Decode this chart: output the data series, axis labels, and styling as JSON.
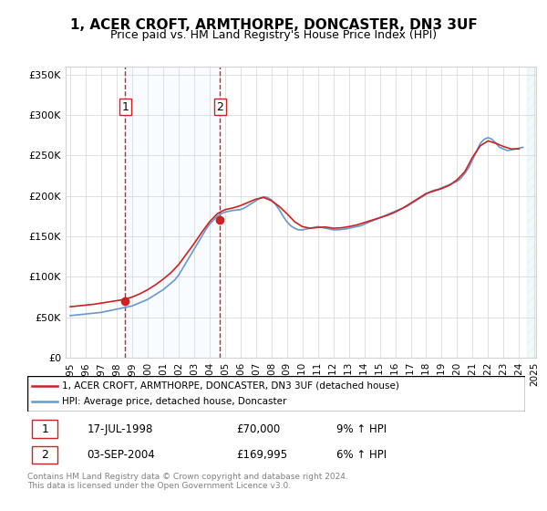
{
  "title": "1, ACER CROFT, ARMTHORPE, DONCASTER, DN3 3UF",
  "subtitle": "Price paid vs. HM Land Registry's House Price Index (HPI)",
  "legend_line1": "1, ACER CROFT, ARMTHORPE, DONCASTER, DN3 3UF (detached house)",
  "legend_line2": "HPI: Average price, detached house, Doncaster",
  "transaction1_label": "1",
  "transaction1_date": "17-JUL-1998",
  "transaction1_price": "£70,000",
  "transaction1_hpi": "9% ↑ HPI",
  "transaction2_label": "2",
  "transaction2_date": "03-SEP-2004",
  "transaction2_price": "£169,995",
  "transaction2_hpi": "6% ↑ HPI",
  "footer": "Contains HM Land Registry data © Crown copyright and database right 2024.\nThis data is licensed under the Open Government Licence v3.0.",
  "hpi_color": "#6699cc",
  "price_color": "#cc2222",
  "vline_color": "#cc2222",
  "marker_color": "#cc2222",
  "background_shading_color": "#ddeeff",
  "ylim": [
    0,
    360000
  ],
  "yticks": [
    0,
    50000,
    100000,
    150000,
    200000,
    250000,
    300000,
    350000
  ],
  "transaction1_x": 1998.54,
  "transaction1_y": 70000,
  "transaction2_x": 2004.67,
  "transaction2_y": 169995,
  "hpi_years": [
    1995,
    1995.25,
    1995.5,
    1995.75,
    1996,
    1996.25,
    1996.5,
    1996.75,
    1997,
    1997.25,
    1997.5,
    1997.75,
    1998,
    1998.25,
    1998.5,
    1998.75,
    1999,
    1999.25,
    1999.5,
    1999.75,
    2000,
    2000.25,
    2000.5,
    2000.75,
    2001,
    2001.25,
    2001.5,
    2001.75,
    2002,
    2002.25,
    2002.5,
    2002.75,
    2003,
    2003.25,
    2003.5,
    2003.75,
    2004,
    2004.25,
    2004.5,
    2004.75,
    2005,
    2005.25,
    2005.5,
    2005.75,
    2006,
    2006.25,
    2006.5,
    2006.75,
    2007,
    2007.25,
    2007.5,
    2007.75,
    2008,
    2008.25,
    2008.5,
    2008.75,
    2009,
    2009.25,
    2009.5,
    2009.75,
    2010,
    2010.25,
    2010.5,
    2010.75,
    2011,
    2011.25,
    2011.5,
    2011.75,
    2012,
    2012.25,
    2012.5,
    2012.75,
    2013,
    2013.25,
    2013.5,
    2013.75,
    2014,
    2014.25,
    2014.5,
    2014.75,
    2015,
    2015.25,
    2015.5,
    2015.75,
    2016,
    2016.25,
    2016.5,
    2016.75,
    2017,
    2017.25,
    2017.5,
    2017.75,
    2018,
    2018.25,
    2018.5,
    2018.75,
    2019,
    2019.25,
    2019.5,
    2019.75,
    2020,
    2020.25,
    2020.5,
    2020.75,
    2021,
    2021.25,
    2021.5,
    2021.75,
    2022,
    2022.25,
    2022.5,
    2022.75,
    2023,
    2023.25,
    2023.5,
    2023.75,
    2024,
    2024.25
  ],
  "hpi_values": [
    52000,
    52500,
    53000,
    53500,
    54000,
    54500,
    55000,
    55500,
    56000,
    57000,
    58000,
    59000,
    60000,
    61000,
    62000,
    63000,
    64000,
    66000,
    68000,
    70000,
    72000,
    75000,
    78000,
    81000,
    84000,
    88000,
    92000,
    96000,
    102000,
    110000,
    118000,
    126000,
    134000,
    142000,
    150000,
    158000,
    165000,
    170000,
    175000,
    178000,
    180000,
    181000,
    182000,
    182500,
    183000,
    185000,
    188000,
    191000,
    194000,
    197000,
    199000,
    198000,
    195000,
    190000,
    183000,
    175000,
    168000,
    163000,
    160000,
    158000,
    158000,
    159000,
    160000,
    161000,
    162000,
    161000,
    160000,
    159000,
    158000,
    158000,
    158500,
    159000,
    160000,
    161000,
    162000,
    163000,
    165000,
    167000,
    169000,
    171000,
    173000,
    175000,
    177000,
    179000,
    181000,
    183000,
    185000,
    187000,
    190000,
    193000,
    196000,
    199000,
    202000,
    205000,
    207000,
    208000,
    210000,
    212000,
    214000,
    216000,
    218000,
    222000,
    228000,
    235000,
    245000,
    255000,
    265000,
    270000,
    272000,
    270000,
    265000,
    260000,
    258000,
    256000,
    257000,
    258000,
    259000,
    260000
  ],
  "price_years": [
    1995,
    1995.5,
    1996,
    1996.5,
    1997,
    1997.5,
    1998,
    1998.5,
    1999,
    1999.5,
    2000,
    2000.5,
    2001,
    2001.5,
    2002,
    2002.5,
    2003,
    2003.5,
    2004,
    2004.5,
    2005,
    2005.5,
    2006,
    2006.5,
    2007,
    2007.5,
    2008,
    2008.5,
    2009,
    2009.5,
    2010,
    2010.5,
    2011,
    2011.5,
    2012,
    2012.5,
    2013,
    2013.5,
    2014,
    2014.5,
    2015,
    2015.5,
    2016,
    2016.5,
    2017,
    2017.5,
    2018,
    2018.5,
    2019,
    2019.5,
    2020,
    2020.5,
    2021,
    2021.5,
    2022,
    2022.5,
    2023,
    2023.5,
    2024
  ],
  "price_values": [
    63000,
    64000,
    65000,
    66000,
    67500,
    69000,
    70500,
    72000,
    75000,
    79000,
    84000,
    90000,
    97000,
    105000,
    115000,
    128000,
    141000,
    155000,
    168000,
    178000,
    183000,
    185000,
    188000,
    192000,
    196000,
    198000,
    194000,
    187000,
    178000,
    168000,
    162000,
    160000,
    161000,
    161500,
    160000,
    160500,
    162000,
    164000,
    167000,
    170000,
    173000,
    176000,
    180000,
    185000,
    191000,
    197000,
    203000,
    206000,
    209000,
    213000,
    220000,
    230000,
    248000,
    262000,
    268000,
    265000,
    261000,
    258000,
    258000
  ],
  "xticks": [
    1995,
    1996,
    1997,
    1998,
    1999,
    2000,
    2001,
    2002,
    2003,
    2004,
    2005,
    2006,
    2007,
    2008,
    2009,
    2010,
    2011,
    2012,
    2013,
    2014,
    2015,
    2016,
    2017,
    2018,
    2019,
    2020,
    2021,
    2022,
    2023,
    2024,
    2025
  ]
}
